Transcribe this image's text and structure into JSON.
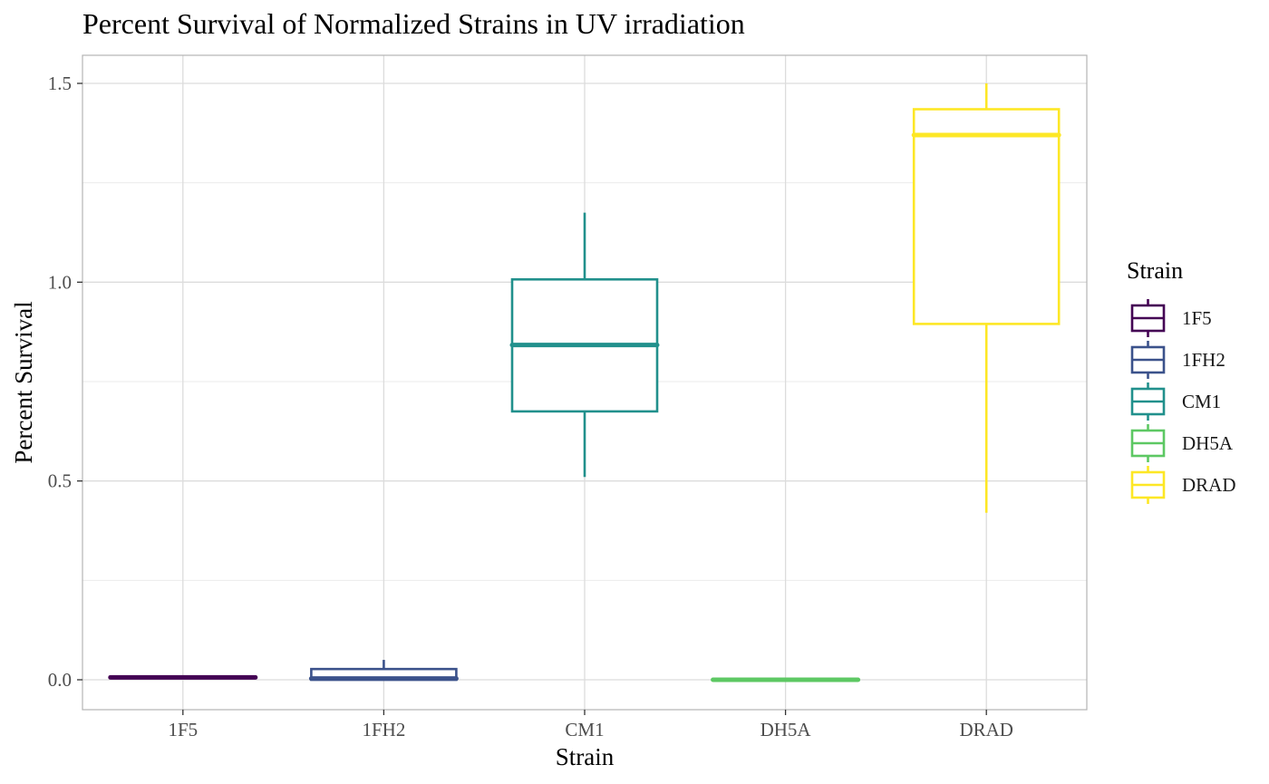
{
  "chart_data": {
    "type": "boxplot",
    "title": "Percent Survival of Normalized Strains in UV irradiation",
    "xlabel": "Strain",
    "ylabel": "Percent Survival",
    "ylim": [
      -0.07,
      1.57
    ],
    "y_ticks": [
      0.0,
      0.5,
      1.0,
      1.5
    ],
    "y_tick_labels": [
      "0.0",
      "0.5",
      "1.0",
      "1.5"
    ],
    "y_minor_ticks": [
      0.25,
      0.75,
      1.25
    ],
    "grid": true,
    "legend_position": "right",
    "legend_title": "Strain",
    "categories": [
      "1F5",
      "1FH2",
      "CM1",
      "DH5A",
      "DRAD"
    ],
    "boxes": [
      {
        "name": "1F5",
        "min": 0.003,
        "q1": 0.004,
        "median": 0.006,
        "q3": 0.007,
        "max": 0.008,
        "color": "#440154"
      },
      {
        "name": "1FH2",
        "min": 0.0,
        "q1": 0.0,
        "median": 0.003,
        "q3": 0.027,
        "max": 0.05,
        "color": "#3B528B"
      },
      {
        "name": "CM1",
        "min": 0.51,
        "q1": 0.675,
        "median": 0.842,
        "q3": 1.007,
        "max": 1.175,
        "color": "#21908C"
      },
      {
        "name": "DH5A",
        "min": 0.0,
        "q1": 0.0,
        "median": 0.0,
        "q3": 0.001,
        "max": 0.001,
        "color": "#5DC863"
      },
      {
        "name": "DRAD",
        "min": 0.42,
        "q1": 0.895,
        "median": 1.37,
        "q3": 1.435,
        "max": 1.5,
        "color": "#FDE725"
      }
    ]
  }
}
